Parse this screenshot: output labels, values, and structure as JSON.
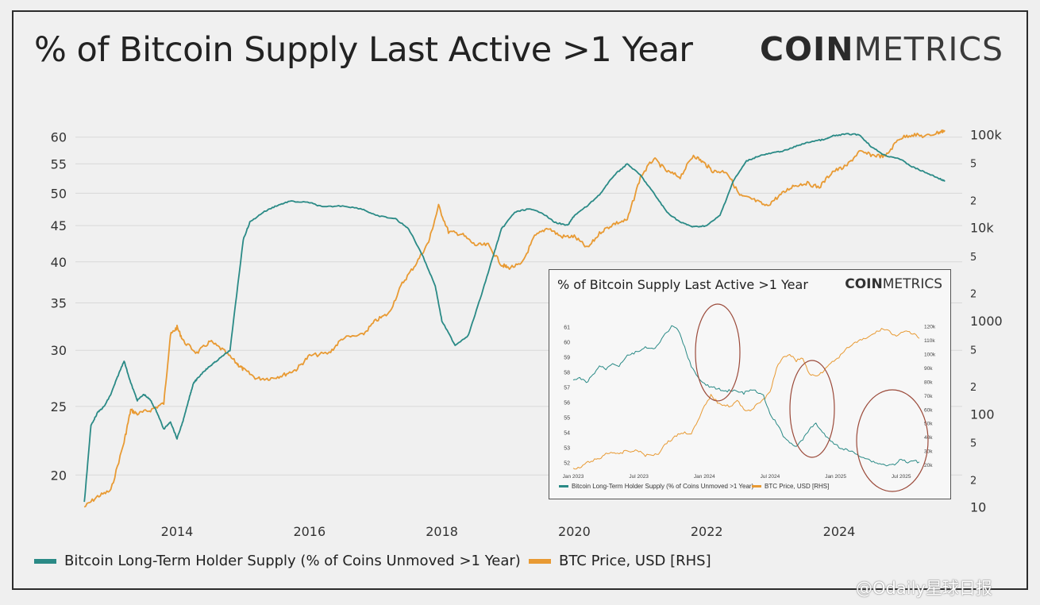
{
  "header": {
    "title": "% of Bitcoin Supply Last Active >1 Year",
    "logo_bold": "COIN",
    "logo_thin": "METRICS"
  },
  "colors": {
    "ltH": "#2a8a86",
    "btc": "#e89a33",
    "grid": "#d8d8d8",
    "circle": "#9b4a3a"
  },
  "legend": {
    "series1": "Bitcoin Long-Term Holder Supply (% of Coins Unmoved >1 Year)",
    "series2": "BTC Price, USD [RHS]"
  },
  "chart_data": [
    {
      "type": "line",
      "title": "% of Bitcoin Supply Last Active >1 Year",
      "x_ticks": [
        "2014",
        "2016",
        "2018",
        "2020",
        "2022",
        "2024"
      ],
      "left_axis": {
        "scale": "log",
        "ticks": [
          20,
          25,
          30,
          35,
          40,
          45,
          50,
          55,
          60
        ],
        "range": [
          17.5,
          62
        ]
      },
      "right_axis": {
        "scale": "log",
        "ticks": [
          "10",
          "2",
          "5",
          "100",
          "2",
          "5",
          "1000",
          "2",
          "5",
          "10k",
          "2",
          "5",
          "100k"
        ],
        "range": [
          8,
          120000
        ]
      },
      "grid": "horizontal",
      "series": [
        {
          "name": "Bitcoin Long-Term Holder Supply (% of Coins Unmoved >1 Year)",
          "axis": "left",
          "x": [
            2012.6,
            2012.7,
            2012.8,
            2012.9,
            2013.0,
            2013.1,
            2013.2,
            2013.3,
            2013.4,
            2013.5,
            2013.6,
            2013.7,
            2013.8,
            2013.9,
            2014.0,
            2014.1,
            2014.2,
            2014.25,
            2014.3,
            2014.4,
            2014.5,
            2014.6,
            2014.8,
            2015.0,
            2015.1,
            2015.3,
            2015.5,
            2015.7,
            2016.0,
            2016.2,
            2016.5,
            2016.8,
            2017.0,
            2017.3,
            2017.5,
            2017.7,
            2017.9,
            2018.0,
            2018.2,
            2018.4,
            2018.6,
            2018.8,
            2018.9,
            2019.1,
            2019.3,
            2019.5,
            2019.7,
            2019.9,
            2020.0,
            2020.2,
            2020.4,
            2020.6,
            2020.8,
            2021.0,
            2021.2,
            2021.4,
            2021.6,
            2021.8,
            2022.0,
            2022.2,
            2022.4,
            2022.6,
            2022.8,
            2023.0,
            2023.2,
            2023.4,
            2023.6,
            2023.8,
            2023.9,
            2024.1,
            2024.3,
            2024.5,
            2024.7,
            2024.9,
            2025.1,
            2025.3,
            2025.5,
            2025.6
          ],
          "values": [
            18.3,
            23.5,
            24.5,
            25.0,
            26.0,
            27.5,
            29.0,
            27.0,
            25.5,
            26.0,
            25.5,
            24.5,
            23.2,
            23.8,
            22.5,
            24.0,
            26.0,
            27.0,
            27.3,
            28.0,
            28.5,
            29.0,
            30.0,
            43.0,
            45.5,
            47.0,
            48.0,
            48.7,
            48.5,
            47.8,
            48.0,
            47.5,
            46.5,
            46.0,
            44.5,
            41.0,
            37.0,
            33.0,
            30.5,
            31.5,
            36.0,
            41.5,
            44.5,
            47.0,
            47.5,
            47.0,
            45.5,
            45.0,
            46.5,
            48.0,
            50.0,
            53.0,
            55.0,
            53.0,
            50.0,
            47.0,
            45.5,
            44.8,
            45.0,
            46.5,
            52.0,
            55.5,
            56.5,
            57.0,
            57.5,
            58.5,
            59.2,
            59.6,
            60.2,
            60.6,
            60.5,
            58.0,
            56.5,
            56.0,
            54.5,
            53.5,
            52.5,
            52.0
          ]
        },
        {
          "name": "BTC Price, USD [RHS]",
          "axis": "right",
          "x": [
            2012.6,
            2012.8,
            2013.0,
            2013.2,
            2013.3,
            2013.4,
            2013.6,
            2013.8,
            2013.9,
            2014.0,
            2014.1,
            2014.3,
            2014.5,
            2014.7,
            2014.9,
            2015.0,
            2015.2,
            2015.4,
            2015.6,
            2015.8,
            2016.0,
            2016.3,
            2016.5,
            2016.8,
            2017.0,
            2017.2,
            2017.4,
            2017.6,
            2017.8,
            2017.95,
            2018.1,
            2018.3,
            2018.5,
            2018.7,
            2018.9,
            2019.0,
            2019.2,
            2019.4,
            2019.6,
            2019.8,
            2020.0,
            2020.2,
            2020.4,
            2020.6,
            2020.8,
            2021.0,
            2021.2,
            2021.4,
            2021.6,
            2021.8,
            2021.95,
            2022.1,
            2022.3,
            2022.5,
            2022.7,
            2022.9,
            2023.1,
            2023.3,
            2023.5,
            2023.7,
            2023.9,
            2024.1,
            2024.3,
            2024.5,
            2024.7,
            2024.9,
            2025.1,
            2025.3,
            2025.5,
            2025.6
          ],
          "values": [
            10,
            13,
            15,
            50,
            110,
            100,
            110,
            130,
            700,
            850,
            600,
            450,
            600,
            480,
            350,
            300,
            240,
            240,
            260,
            300,
            420,
            450,
            650,
            700,
            1000,
            1200,
            2500,
            4000,
            7000,
            17000,
            9000,
            8500,
            6500,
            6500,
            4000,
            3700,
            4000,
            8000,
            10000,
            8000,
            8000,
            6000,
            9000,
            11000,
            12000,
            35000,
            55000,
            40000,
            35000,
            60000,
            50000,
            40000,
            40000,
            22000,
            20000,
            17000,
            22000,
            28000,
            30000,
            27000,
            40000,
            45000,
            65000,
            60000,
            58000,
            90000,
            100000,
            95000,
            105000,
            110000
          ]
        }
      ]
    },
    {
      "type": "line",
      "title": "% of Bitcoin Supply Last Active >1 Year",
      "x_ticks": [
        "Jan 2023",
        "Jul 2023",
        "Jan 2024",
        "Jul 2024",
        "Jan 2025",
        "Jul 2025"
      ],
      "left_axis": {
        "ticks": [
          52,
          53,
          54,
          55,
          56,
          57,
          58,
          59,
          60,
          61
        ],
        "range": [
          51.5,
          61.5
        ]
      },
      "right_axis": {
        "ticks": [
          "20k",
          "30k",
          "40k",
          "50k",
          "60k",
          "70k",
          "80k",
          "90k",
          "100k",
          "110k",
          "120k"
        ],
        "range": [
          16000,
          125000
        ]
      },
      "annotations": [
        "red ellipse around Jan 2024 peak",
        "red ellipse around Jan 2025 drop",
        "red ellipse around Jul 2025 drop"
      ],
      "series": [
        {
          "name": "Bitcoin Long-Term Holder Supply (% of Coins Unmoved >1 Year)",
          "axis": "left",
          "x": [
            0,
            0.05,
            0.1,
            0.15,
            0.2,
            0.25,
            0.3,
            0.35,
            0.4,
            0.45,
            0.5,
            0.55,
            0.6,
            0.65,
            0.7,
            0.75,
            0.8,
            0.85,
            0.9,
            0.95,
            1.0,
            1.05,
            1.1,
            1.15,
            1.2,
            1.25,
            1.3,
            1.35,
            1.4,
            1.45,
            1.5,
            1.55,
            1.6,
            1.65,
            1.7,
            1.75,
            1.8,
            1.85,
            1.9,
            1.95,
            2.0,
            2.05,
            2.1,
            2.15,
            2.2,
            2.25,
            2.3,
            2.35,
            2.4,
            2.45,
            2.5,
            2.55,
            2.6,
            2.65
          ],
          "values": [
            57.4,
            57.6,
            57.3,
            57.8,
            58.4,
            58.2,
            58.6,
            58.4,
            59.0,
            59.2,
            59.4,
            59.6,
            59.5,
            59.8,
            60.5,
            61.0,
            60.8,
            59.6,
            58.4,
            57.6,
            57.2,
            57.0,
            56.9,
            56.7,
            56.8,
            56.7,
            56.6,
            56.8,
            56.7,
            56.4,
            55.2,
            54.6,
            53.8,
            53.3,
            53.1,
            53.5,
            54.2,
            54.6,
            54.0,
            53.5,
            53.2,
            52.9,
            52.8,
            52.6,
            52.4,
            52.2,
            52.0,
            51.9,
            51.8,
            51.9,
            52.2,
            52.0,
            52.1,
            52.0
          ]
        },
        {
          "name": "BTC Price, USD [RHS]",
          "axis": "right",
          "x": [
            0,
            0.05,
            0.1,
            0.15,
            0.2,
            0.25,
            0.3,
            0.35,
            0.4,
            0.45,
            0.5,
            0.55,
            0.6,
            0.65,
            0.7,
            0.75,
            0.8,
            0.85,
            0.9,
            0.95,
            1.0,
            1.05,
            1.1,
            1.15,
            1.2,
            1.25,
            1.3,
            1.35,
            1.4,
            1.45,
            1.5,
            1.55,
            1.6,
            1.65,
            1.7,
            1.75,
            1.8,
            1.85,
            1.9,
            1.95,
            2.0,
            2.05,
            2.1,
            2.15,
            2.2,
            2.25,
            2.3,
            2.35,
            2.4,
            2.45,
            2.5,
            2.55,
            2.6,
            2.65
          ],
          "values": [
            16500,
            17500,
            21000,
            23000,
            24000,
            28000,
            29000,
            27000,
            30000,
            29500,
            30000,
            26500,
            27000,
            28000,
            35000,
            38000,
            42000,
            43000,
            42500,
            51000,
            62000,
            70000,
            65000,
            63000,
            62000,
            66000,
            60000,
            59000,
            63000,
            67000,
            72000,
            90000,
            97000,
            100000,
            95000,
            97000,
            85000,
            84000,
            87000,
            93000,
            95000,
            100000,
            105000,
            108000,
            110000,
            112000,
            115000,
            118000,
            117000,
            113000,
            115000,
            116000,
            114000,
            110000
          ]
        }
      ]
    }
  ],
  "inset": {
    "title": "% of Bitcoin Supply Last Active >1 Year",
    "logo_bold": "COIN",
    "logo_thin": "METRICS",
    "legend1": "Bitcoin Long-Term Holder Supply (% of Coins Unmoved >1 Year)",
    "legend2": "BTC Price, USD [RHS]"
  },
  "watermark": "@Odaily星球日报"
}
